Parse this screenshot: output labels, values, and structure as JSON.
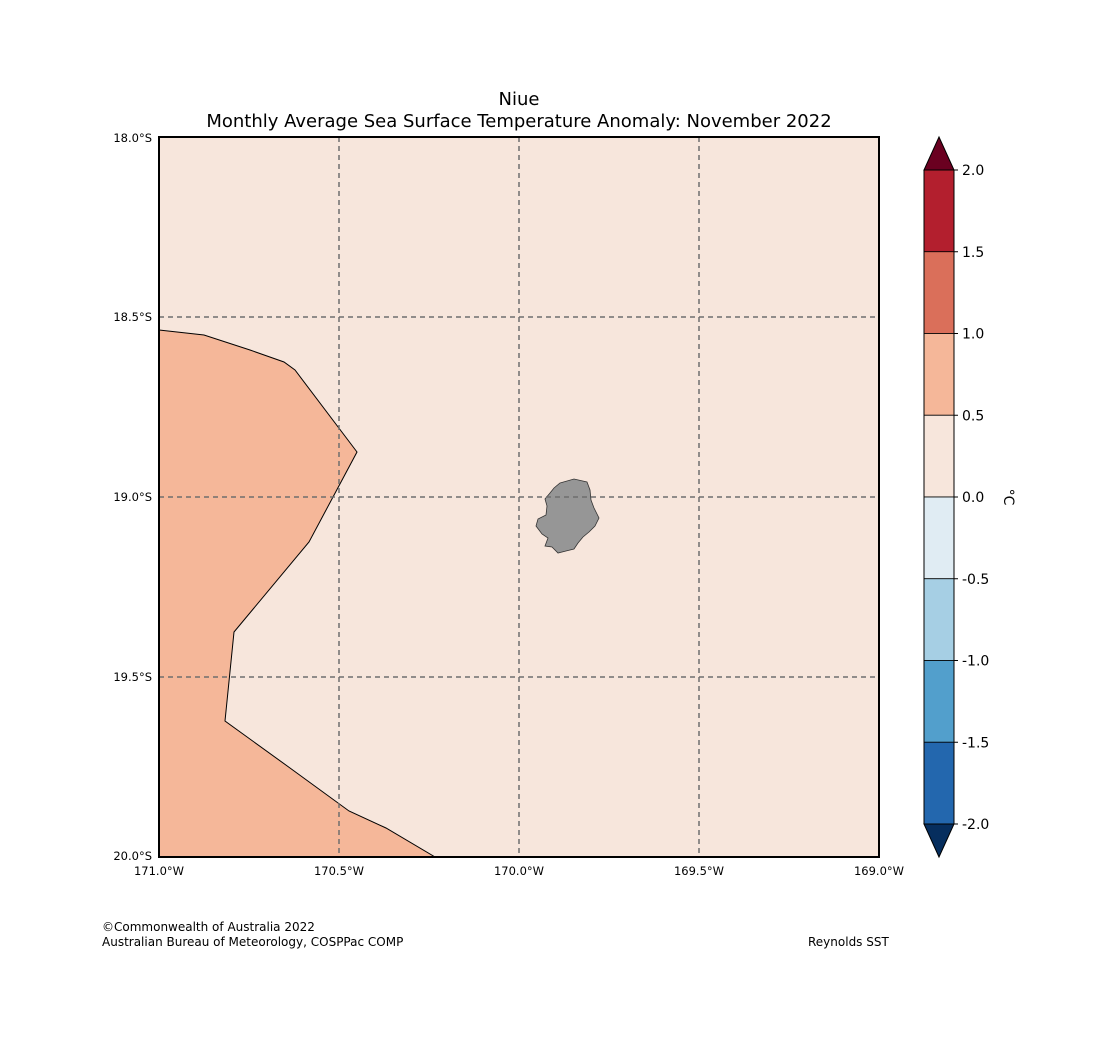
{
  "map": {
    "title_line1": "Niue",
    "title_line2": "Monthly Average Sea Surface Temperature Anomaly: November 2022",
    "lat_labels": [
      "18.0°S",
      "18.5°S",
      "19.0°S",
      "19.5°S",
      "20.0°S"
    ],
    "lon_labels": [
      "171.0°W",
      "170.5°W",
      "170.0°W",
      "169.5°W",
      "169.0°W"
    ],
    "background_anomaly_class": "0.0 to 0.5",
    "background_color": "#f7e6dc",
    "west_region_anomaly_class": "0.5 to 1.0",
    "west_region_color": "#f5b799",
    "land_color": "#969696",
    "gridlines": true
  },
  "colorbar": {
    "unit_label": "°C",
    "tick_labels": [
      "2.0",
      "1.5",
      "1.0",
      "0.5",
      "0.0",
      "-0.5",
      "-1.0",
      "-1.5",
      "-2.0"
    ],
    "levels": [
      2.0,
      1.5,
      1.0,
      0.5,
      0.0,
      -0.5,
      -1.0,
      -1.5,
      -2.0
    ],
    "band_colors": [
      "#b31f2e",
      "#da6f5a",
      "#f5b799",
      "#f7e6dc",
      "#e0ecf3",
      "#a6cfe4",
      "#529fcc",
      "#2367ae"
    ],
    "extend_max_color": "#6a0020",
    "extend_min_color": "#062e5e"
  },
  "footer": {
    "copyright": "©Commonwealth of Australia 2022",
    "agency": "Australian Bureau of Meteorology, COSPPac COMP",
    "source": "Reynolds SST"
  }
}
